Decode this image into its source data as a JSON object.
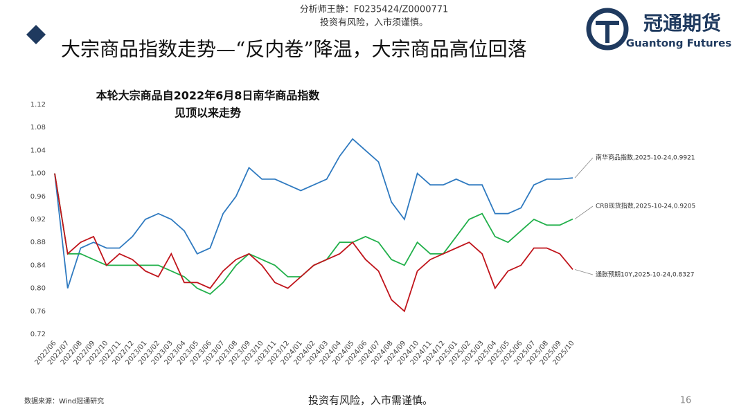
{
  "slide": {
    "analyst": "分析师王静：F0235424/Z0000771",
    "risk_top": "投资有风险，入市须谨慎。",
    "heading": "大宗商品指数走势—“反内卷”降温，大宗商品高位回落",
    "logo_cn": "冠通期货",
    "logo_en": "Guantong Futures",
    "source": "数据来源：Wind冠通研究",
    "risk_bottom": "投资有风险，入市需谨慎。",
    "page": "16"
  },
  "chart_data": {
    "type": "line",
    "title_lines": [
      "本轮大宗商品自2022年6月8日南华商品指数",
      "见顶以来走势"
    ],
    "categories": [
      "2022/06",
      "2022/07",
      "2022/08",
      "2022/09",
      "2022/10",
      "2022/11",
      "2022/12",
      "2023/01",
      "2023/02",
      "2023/03",
      "2023/04",
      "2023/05",
      "2023/06",
      "2023/07",
      "2023/08",
      "2023/09",
      "2023/10",
      "2023/11",
      "2023/12",
      "2024/01",
      "2024/02",
      "2024/03",
      "2024/04",
      "2024/05",
      "2024/06",
      "2024/07",
      "2024/08",
      "2024/09",
      "2024/10",
      "2024/11",
      "2024/12",
      "2025/01",
      "2025/02",
      "2025/03",
      "2025/04",
      "2025/05",
      "2025/06",
      "2025/07",
      "2025/08",
      "2025/09",
      "2025/10"
    ],
    "series": [
      {
        "name": "南华商品指数,2025-10-24,0.9921",
        "color": "#2f7ac0",
        "values": [
          1.0,
          0.8,
          0.87,
          0.88,
          0.87,
          0.87,
          0.89,
          0.92,
          0.93,
          0.92,
          0.9,
          0.86,
          0.87,
          0.93,
          0.96,
          1.01,
          0.99,
          0.99,
          0.98,
          0.97,
          0.98,
          0.99,
          1.03,
          1.06,
          1.04,
          1.02,
          0.95,
          0.92,
          1.0,
          0.98,
          0.98,
          0.99,
          0.98,
          0.98,
          0.93,
          0.93,
          0.94,
          0.98,
          0.99,
          0.99,
          0.9921
        ]
      },
      {
        "name": "CRB现货指数,2025-10-24,0.9205",
        "color": "#22b04b",
        "values": [
          1.0,
          0.86,
          0.86,
          0.85,
          0.84,
          0.84,
          0.84,
          0.84,
          0.84,
          0.83,
          0.82,
          0.8,
          0.79,
          0.81,
          0.84,
          0.86,
          0.85,
          0.84,
          0.82,
          0.82,
          0.84,
          0.85,
          0.88,
          0.88,
          0.89,
          0.88,
          0.85,
          0.84,
          0.88,
          0.86,
          0.86,
          0.89,
          0.92,
          0.93,
          0.89,
          0.88,
          0.9,
          0.92,
          0.91,
          0.91,
          0.9205
        ]
      },
      {
        "name": "通胀预期10Y,2025-10-24,0.8327",
        "color": "#c0141b",
        "values": [
          1.0,
          0.86,
          0.88,
          0.89,
          0.84,
          0.86,
          0.85,
          0.83,
          0.82,
          0.86,
          0.81,
          0.81,
          0.8,
          0.83,
          0.85,
          0.86,
          0.84,
          0.81,
          0.8,
          0.82,
          0.84,
          0.85,
          0.86,
          0.88,
          0.85,
          0.83,
          0.78,
          0.76,
          0.83,
          0.85,
          0.86,
          0.87,
          0.88,
          0.86,
          0.8,
          0.83,
          0.84,
          0.87,
          0.87,
          0.86,
          0.8327
        ]
      }
    ],
    "ylim": [
      0.72,
      1.12
    ],
    "yticks": [
      0.72,
      0.76,
      {
        "value": 0.8,
        "label": "0.80"
      },
      0.84,
      0.88,
      0.92,
      0.96,
      {
        "value": 1,
        "label": "1.00"
      },
      1.04,
      1.08,
      1.12
    ],
    "grid": false
  }
}
